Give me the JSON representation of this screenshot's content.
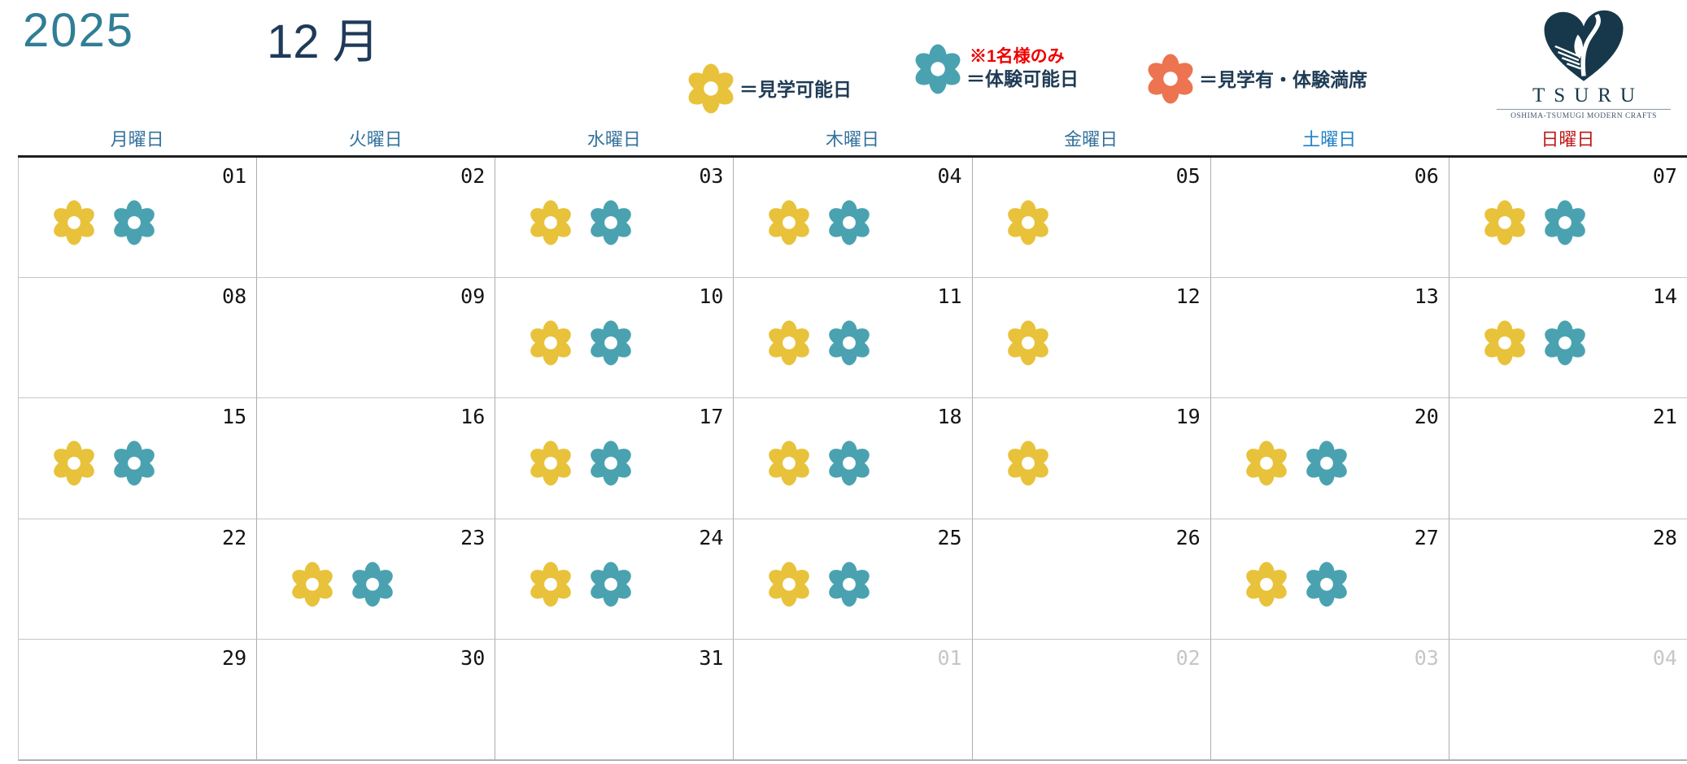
{
  "title": {
    "year": "2025",
    "month": "12 月"
  },
  "legend": {
    "items": [
      {
        "key": "kengaku",
        "label": "＝見学可能日"
      },
      {
        "key": "taiken",
        "note": "※1名様のみ",
        "label": "＝体験可能日"
      },
      {
        "key": "manseki",
        "label": "＝見学有・体験満席"
      }
    ]
  },
  "logo": {
    "name": "TSURU",
    "subtitle": "OSHIMA-TSUMUGI MODERN CRAFTS"
  },
  "colors": {
    "kengaku": "#e8c23a",
    "taiken": "#4aa2b1",
    "manseki": "#ec7450",
    "weekday": "#33719c",
    "saturday": "#2180c8",
    "sunday": "#c01818",
    "day_number": "#141414",
    "next_month_day": "#c6c6c6",
    "year_teal": "#2f7e95",
    "title_navy": "#1f3a59",
    "note_red": "#ef0000"
  },
  "calendar": {
    "weekday_headers": [
      {
        "label": "月曜日",
        "type": "weekday"
      },
      {
        "label": "火曜日",
        "type": "weekday"
      },
      {
        "label": "水曜日",
        "type": "weekday"
      },
      {
        "label": "木曜日",
        "type": "weekday"
      },
      {
        "label": "金曜日",
        "type": "weekday"
      },
      {
        "label": "土曜日",
        "type": "saturday"
      },
      {
        "label": "日曜日",
        "type": "sunday"
      }
    ],
    "cells": [
      {
        "day": "01",
        "flowers": [
          "kengaku",
          "taiken"
        ]
      },
      {
        "day": "02",
        "flowers": []
      },
      {
        "day": "03",
        "flowers": [
          "kengaku",
          "taiken"
        ]
      },
      {
        "day": "04",
        "flowers": [
          "kengaku",
          "taiken"
        ]
      },
      {
        "day": "05",
        "flowers": [
          "kengaku"
        ]
      },
      {
        "day": "06",
        "flowers": []
      },
      {
        "day": "07",
        "flowers": [
          "kengaku",
          "taiken"
        ]
      },
      {
        "day": "08",
        "flowers": []
      },
      {
        "day": "09",
        "flowers": []
      },
      {
        "day": "10",
        "flowers": [
          "kengaku",
          "taiken"
        ]
      },
      {
        "day": "11",
        "flowers": [
          "kengaku",
          "taiken"
        ]
      },
      {
        "day": "12",
        "flowers": [
          "kengaku"
        ]
      },
      {
        "day": "13",
        "flowers": []
      },
      {
        "day": "14",
        "flowers": [
          "kengaku",
          "taiken"
        ]
      },
      {
        "day": "15",
        "flowers": [
          "kengaku",
          "taiken"
        ]
      },
      {
        "day": "16",
        "flowers": []
      },
      {
        "day": "17",
        "flowers": [
          "kengaku",
          "taiken"
        ]
      },
      {
        "day": "18",
        "flowers": [
          "kengaku",
          "taiken"
        ]
      },
      {
        "day": "19",
        "flowers": [
          "kengaku"
        ]
      },
      {
        "day": "20",
        "flowers": [
          "kengaku",
          "taiken"
        ]
      },
      {
        "day": "21",
        "flowers": []
      },
      {
        "day": "22",
        "flowers": []
      },
      {
        "day": "23",
        "flowers": [
          "kengaku",
          "taiken"
        ]
      },
      {
        "day": "24",
        "flowers": [
          "kengaku",
          "taiken"
        ]
      },
      {
        "day": "25",
        "flowers": [
          "kengaku",
          "taiken"
        ]
      },
      {
        "day": "26",
        "flowers": []
      },
      {
        "day": "27",
        "flowers": [
          "kengaku",
          "taiken"
        ]
      },
      {
        "day": "28",
        "flowers": []
      },
      {
        "day": "29",
        "flowers": []
      },
      {
        "day": "30",
        "flowers": []
      },
      {
        "day": "31",
        "flowers": []
      },
      {
        "day": "01",
        "next_month": true,
        "flowers": []
      },
      {
        "day": "02",
        "next_month": true,
        "flowers": []
      },
      {
        "day": "03",
        "next_month": true,
        "flowers": []
      },
      {
        "day": "04",
        "next_month": true,
        "flowers": []
      }
    ]
  }
}
